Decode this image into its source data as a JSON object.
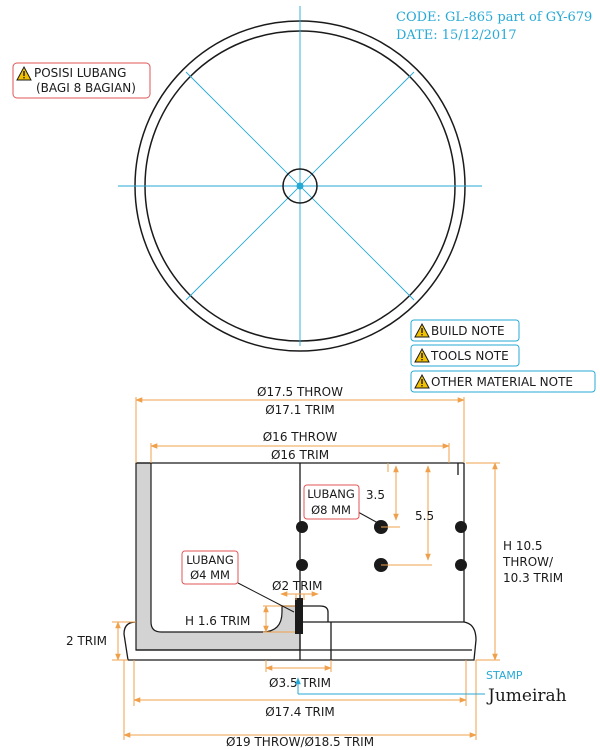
{
  "header": {
    "code": "CODE: GL-865 part of GY-679",
    "date": "DATE: 15/12/2017"
  },
  "notes": {
    "posisi_line1": "POSISI LUBANG",
    "posisi_line2": "(BAGI 8 BAGIAN)",
    "build": "BUILD NOTE",
    "tools": "TOOLS NOTE",
    "other_material": "OTHER MATERIAL NOTE"
  },
  "dimensions": {
    "d17_5_throw": "Ø17.5 THROW",
    "d17_1_trim": "Ø17.1 TRIM",
    "d16_throw": "Ø16 THROW",
    "d16_trim": "Ø16 TRIM",
    "lubang8_line1": "LUBANG",
    "lubang8_line2": "Ø8 MM",
    "v3_5": "3.5",
    "v5_5": "5.5",
    "height_line1": "H 10.5",
    "height_line2": "THROW/",
    "height_line3": "10.3 TRIM",
    "lubang4_line1": "LUBANG",
    "lubang4_line2": "Ø4 MM",
    "d2_trim": "Ø2 TRIM",
    "h1_6_trim": "H 1.6 TRIM",
    "trim2": "2 TRIM",
    "d3_5_trim": "Ø3.5 TRIM",
    "d17_4_trim": "Ø17.4 TRIM",
    "d19_throw": "Ø19 THROW/Ø18.5 TRIM"
  },
  "stamp": {
    "label": "STAMP",
    "logo": "Jumeirah"
  },
  "colors": {
    "centerline": "#27a9d6",
    "dimension": "#f0a04b",
    "callout_border": "#e05555",
    "note_border": "#27a9d6",
    "warning": "#f2c200",
    "section_fill": "#d3d3d3"
  },
  "icons": [
    "warning-icon"
  ]
}
